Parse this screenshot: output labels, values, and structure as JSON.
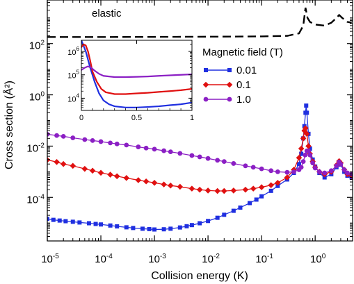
{
  "chart_data": [
    {
      "type": "line",
      "xlabel": "Collision energy (K)",
      "ylabel": "Cross section (Å²)",
      "xscale": "log",
      "yscale": "log",
      "xlim": [
        1e-05,
        5
      ],
      "ylim": [
        2e-06,
        5000
      ],
      "x_ticks": [
        1e-05,
        0.0001,
        0.001,
        0.01,
        0.1,
        1
      ],
      "x_tick_labels": [
        {
          "base": "10",
          "exp": "-5"
        },
        {
          "base": "10",
          "exp": "-4"
        },
        {
          "base": "10",
          "exp": "-3"
        },
        {
          "base": "10",
          "exp": "-2"
        },
        {
          "base": "10",
          "exp": "-1"
        },
        {
          "base": "10",
          "exp": "0"
        }
      ],
      "y_ticks": [
        0.0001,
        0.01,
        1,
        100
      ],
      "y_tick_labels": [
        {
          "base": "10",
          "exp": "-4"
        },
        {
          "base": "10",
          "exp": "-2"
        },
        {
          "base": "10",
          "exp": "0"
        },
        {
          "base": "10",
          "exp": "2"
        }
      ],
      "grid": false,
      "legend": {
        "title": "Magnetic field (T)",
        "placement": "center-right"
      },
      "annotation": "elastic",
      "series": [
        {
          "name": "0.01",
          "color": "#1f2fe0",
          "marker": "square",
          "points": [
            [
              1e-05,
              1.45e-05
            ],
            [
              1.3e-05,
              1.33e-05
            ],
            [
              1.7e-05,
              1.25e-05
            ],
            [
              2.2e-05,
              1.18e-05
            ],
            [
              3e-05,
              1.12e-05
            ],
            [
              4e-05,
              1.05e-05
            ],
            [
              6e-05,
              9.8e-06
            ],
            [
              8e-05,
              9.2e-06
            ],
            [
              0.0001,
              8.8e-06
            ],
            [
              0.00015,
              8e-06
            ],
            [
              0.0002,
              7.4e-06
            ],
            [
              0.0003,
              6.8e-06
            ],
            [
              0.0004,
              6.4e-06
            ],
            [
              0.0006,
              6e-06
            ],
            [
              0.0008,
              5.8e-06
            ],
            [
              0.001,
              5.6e-06
            ],
            [
              0.0015,
              5.7e-06
            ],
            [
              0.002,
              6e-06
            ],
            [
              0.003,
              6.7e-06
            ],
            [
              0.004,
              7.5e-06
            ],
            [
              0.005,
              8.3e-06
            ],
            [
              0.007,
              9.8e-06
            ],
            [
              0.01,
              1.2e-05
            ],
            [
              0.015,
              1.6e-05
            ],
            [
              0.02,
              2.1e-05
            ],
            [
              0.03,
              3e-05
            ],
            [
              0.04,
              4e-05
            ],
            [
              0.06,
              6e-05
            ],
            [
              0.08,
              8.2e-05
            ],
            [
              0.1,
              0.00011
            ],
            [
              0.15,
              0.00018
            ],
            [
              0.2,
              0.00028
            ],
            [
              0.3,
              0.0005
            ],
            [
              0.4,
              0.0009
            ],
            [
              0.5,
              0.002
            ],
            [
              0.55,
              0.005
            ],
            [
              0.6,
              0.02
            ],
            [
              0.63,
              0.06
            ],
            [
              0.66,
              0.2
            ],
            [
              0.68,
              0.38
            ],
            [
              0.7,
              0.2
            ],
            [
              0.75,
              0.03
            ],
            [
              0.8,
              0.008
            ],
            [
              0.9,
              0.003
            ],
            [
              1.0,
              0.0016
            ],
            [
              1.2,
              0.0009
            ],
            [
              1.5,
              0.0006
            ],
            [
              2.0,
              0.0008
            ],
            [
              2.5,
              0.0015
            ],
            [
              2.8,
              0.0022
            ],
            [
              3.0,
              0.0019
            ],
            [
              3.5,
              0.001
            ],
            [
              4.0,
              0.0007
            ],
            [
              4.8,
              0.0006
            ]
          ]
        },
        {
          "name": "0.1",
          "color": "#e01010",
          "marker": "diamond",
          "points": [
            [
              1e-05,
              0.0029
            ],
            [
              1.5e-05,
              0.0024
            ],
            [
              2e-05,
              0.002
            ],
            [
              3e-05,
              0.0017
            ],
            [
              5e-05,
              0.0013
            ],
            [
              7e-05,
              0.0011
            ],
            [
              0.0001,
              0.00091
            ],
            [
              0.00015,
              0.00077
            ],
            [
              0.0002,
              0.00067
            ],
            [
              0.0003,
              0.00057
            ],
            [
              0.0005,
              0.00047
            ],
            [
              0.0007,
              0.00042
            ],
            [
              0.001,
              0.00037
            ],
            [
              0.0015,
              0.00032
            ],
            [
              0.002,
              0.00029
            ],
            [
              0.003,
              0.00026
            ],
            [
              0.005,
              0.00022
            ],
            [
              0.007,
              0.0002
            ],
            [
              0.01,
              0.000185
            ],
            [
              0.015,
              0.000178
            ],
            [
              0.02,
              0.000178
            ],
            [
              0.03,
              0.000185
            ],
            [
              0.05,
              0.0002
            ],
            [
              0.07,
              0.00022
            ],
            [
              0.1,
              0.00025
            ],
            [
              0.15,
              0.0003
            ],
            [
              0.2,
              0.00037
            ],
            [
              0.3,
              0.0006
            ],
            [
              0.4,
              0.0012
            ],
            [
              0.5,
              0.0035
            ],
            [
              0.55,
              0.008
            ],
            [
              0.6,
              0.02
            ],
            [
              0.63,
              0.04
            ],
            [
              0.66,
              0.05
            ],
            [
              0.7,
              0.03
            ],
            [
              0.75,
              0.01
            ],
            [
              0.8,
              0.005
            ],
            [
              0.9,
              0.0025
            ],
            [
              1.0,
              0.0015
            ],
            [
              1.2,
              0.001
            ],
            [
              1.5,
              0.0008
            ],
            [
              2.0,
              0.001
            ],
            [
              2.5,
              0.0018
            ],
            [
              2.8,
              0.0026
            ],
            [
              3.0,
              0.0022
            ],
            [
              3.5,
              0.0012
            ],
            [
              4.0,
              0.0008
            ],
            [
              4.8,
              0.0007
            ]
          ]
        },
        {
          "name": "1.0",
          "color": "#8b1fc4",
          "marker": "circle",
          "points": [
            [
              1e-05,
              0.029
            ],
            [
              1.5e-05,
              0.026
            ],
            [
              2e-05,
              0.024
            ],
            [
              3e-05,
              0.021
            ],
            [
              5e-05,
              0.018
            ],
            [
              7e-05,
              0.0165
            ],
            [
              0.0001,
              0.015
            ],
            [
              0.00015,
              0.0133
            ],
            [
              0.0002,
              0.0122
            ],
            [
              0.0003,
              0.011
            ],
            [
              0.0005,
              0.0093
            ],
            [
              0.0007,
              0.0084
            ],
            [
              0.001,
              0.0076
            ],
            [
              0.0015,
              0.0066
            ],
            [
              0.002,
              0.006
            ],
            [
              0.003,
              0.0052
            ],
            [
              0.005,
              0.0043
            ],
            [
              0.007,
              0.0038
            ],
            [
              0.01,
              0.0033
            ],
            [
              0.015,
              0.0028
            ],
            [
              0.02,
              0.0025
            ],
            [
              0.03,
              0.0021
            ],
            [
              0.05,
              0.0017
            ],
            [
              0.07,
              0.0015
            ],
            [
              0.1,
              0.0013
            ],
            [
              0.15,
              0.0011
            ],
            [
              0.2,
              0.001
            ],
            [
              0.3,
              0.00095
            ],
            [
              0.4,
              0.001
            ],
            [
              0.5,
              0.0012
            ],
            [
              0.55,
              0.0015
            ],
            [
              0.6,
              0.0025
            ],
            [
              0.65,
              0.0045
            ],
            [
              0.7,
              0.0065
            ],
            [
              0.75,
              0.0065
            ],
            [
              0.8,
              0.0045
            ],
            [
              0.9,
              0.0022
            ],
            [
              1.0,
              0.0014
            ],
            [
              1.2,
              0.001
            ],
            [
              1.5,
              0.0009
            ],
            [
              2.0,
              0.0011
            ],
            [
              2.5,
              0.0017
            ],
            [
              2.8,
              0.0024
            ],
            [
              3.0,
              0.002
            ],
            [
              3.5,
              0.0012
            ],
            [
              4.0,
              0.0009
            ],
            [
              4.8,
              0.0008
            ]
          ]
        },
        {
          "name": "elastic",
          "color": "#000000",
          "dashed": true,
          "points": [
            [
              1e-05,
              180
            ],
            [
              0.0001,
              180
            ],
            [
              0.001,
              182
            ],
            [
              0.01,
              185
            ],
            [
              0.1,
              190
            ],
            [
              0.3,
              200
            ],
            [
              0.5,
              250
            ],
            [
              0.6,
              500
            ],
            [
              0.66,
              2500
            ],
            [
              0.72,
              1000
            ],
            [
              0.8,
              700
            ],
            [
              1.0,
              550
            ],
            [
              1.5,
              500
            ],
            [
              2.0,
              650
            ],
            [
              2.5,
              1000
            ],
            [
              2.8,
              1300
            ],
            [
              3.2,
              1000
            ],
            [
              4.0,
              700
            ],
            [
              4.8,
              650
            ]
          ]
        }
      ]
    },
    {
      "type": "line",
      "inset": true,
      "xscale": "linear",
      "yscale": "log",
      "xlim": [
        0,
        1
      ],
      "ylim": [
        3000,
        3000000
      ],
      "x_ticks": [
        0,
        0.5,
        1
      ],
      "x_tick_labels": [
        "0",
        "0.5",
        "1"
      ],
      "y_ticks": [
        10000,
        100000,
        1000000
      ],
      "y_tick_labels": [
        {
          "base": "10",
          "exp": "4"
        },
        {
          "base": "10",
          "exp": "5"
        },
        {
          "base": "10",
          "exp": "6"
        }
      ],
      "series": [
        {
          "name": "0.01",
          "color": "#1f2fe0",
          "points": [
            [
              0.0,
              3000000
            ],
            [
              0.04,
              1000000
            ],
            [
              0.08,
              200000
            ],
            [
              0.12,
              50000
            ],
            [
              0.16,
              16000
            ],
            [
              0.2,
              8000
            ],
            [
              0.25,
              5500
            ],
            [
              0.3,
              4500
            ],
            [
              0.4,
              4000
            ],
            [
              0.5,
              4000
            ],
            [
              0.6,
              4200
            ],
            [
              0.7,
              4500
            ],
            [
              0.8,
              5000
            ],
            [
              0.9,
              5500
            ],
            [
              1.0,
              6500
            ]
          ]
        },
        {
          "name": "0.1",
          "color": "#e01010",
          "points": [
            [
              0.0,
              1500000
            ],
            [
              0.02,
              2000000
            ],
            [
              0.04,
              1800000
            ],
            [
              0.06,
              1000000
            ],
            [
              0.08,
              400000
            ],
            [
              0.1,
              140000
            ],
            [
              0.14,
              50000
            ],
            [
              0.18,
              25000
            ],
            [
              0.22,
              18000
            ],
            [
              0.3,
              15000
            ],
            [
              0.4,
              15000
            ],
            [
              0.5,
              16000
            ],
            [
              0.6,
              17000
            ],
            [
              0.7,
              18500
            ],
            [
              0.8,
              20000
            ],
            [
              0.9,
              22000
            ],
            [
              1.0,
              25000
            ]
          ]
        },
        {
          "name": "1.0",
          "color": "#8b1fc4",
          "points": [
            [
              0.0,
              160000
            ],
            [
              0.03,
              200000
            ],
            [
              0.06,
              230000
            ],
            [
              0.09,
              200000
            ],
            [
              0.12,
              150000
            ],
            [
              0.16,
              110000
            ],
            [
              0.2,
              90000
            ],
            [
              0.3,
              80000
            ],
            [
              0.4,
              80000
            ],
            [
              0.5,
              82000
            ],
            [
              0.6,
              85000
            ],
            [
              0.7,
              90000
            ],
            [
              0.8,
              95000
            ],
            [
              0.9,
              100000
            ],
            [
              1.0,
              105000
            ]
          ]
        }
      ]
    }
  ]
}
